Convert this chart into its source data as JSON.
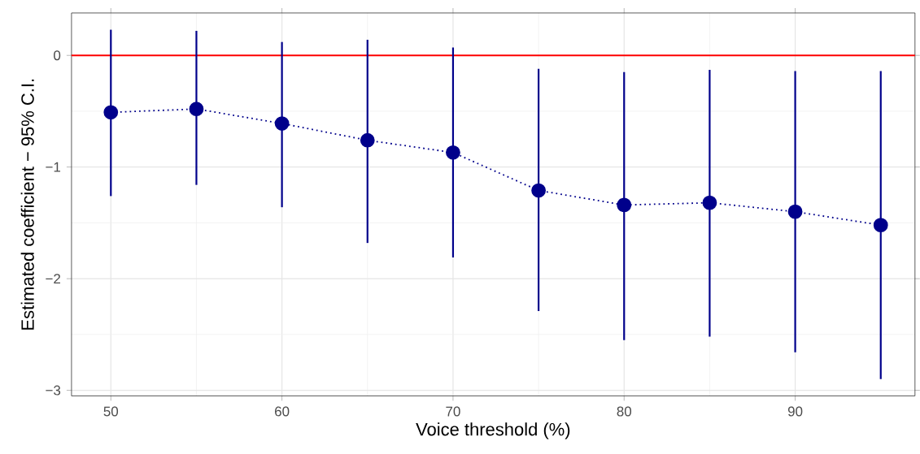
{
  "chart_data": {
    "type": "line",
    "xlabel": "Voice threshold (%)",
    "ylabel": "Estimated coefficient − 95% C.I.",
    "x": [
      50,
      55,
      60,
      65,
      70,
      75,
      80,
      85,
      90,
      95
    ],
    "series": [
      {
        "color": "#00008b",
        "values": [
          -0.51,
          -0.48,
          -0.61,
          -0.76,
          -0.87,
          -1.21,
          -1.34,
          -1.32,
          -1.4,
          -1.52
        ],
        "errors": [
          [
            -1.26,
            0.23
          ],
          [
            -1.16,
            0.22
          ],
          [
            -1.36,
            0.12
          ],
          [
            -1.68,
            0.14
          ],
          [
            -1.81,
            0.07
          ],
          [
            -2.29,
            -0.12
          ],
          [
            -2.55,
            -0.15
          ],
          [
            -2.52,
            -0.13
          ],
          [
            -2.66,
            -0.14
          ],
          [
            -2.9,
            -0.14
          ]
        ]
      }
    ],
    "marker": "circle",
    "line_style": "dotted",
    "grid": true,
    "xlim": [
      47.7,
      97
    ],
    "ylim": [
      -3.05,
      0.38
    ],
    "xticks": [
      50,
      60,
      70,
      80,
      90
    ],
    "yticks": [
      {
        "value": -3,
        "label": "−3"
      },
      {
        "value": -2,
        "label": "−2"
      },
      {
        "value": -1,
        "label": "−1"
      },
      0
    ],
    "ref_lines": [
      {
        "axis": "y",
        "value": 0,
        "color": "#ff0000"
      }
    ]
  }
}
